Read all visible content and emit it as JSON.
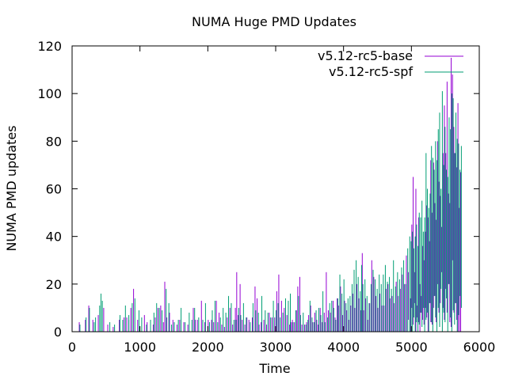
{
  "chart_data": {
    "type": "line",
    "title": "NUMA Huge PMD Updates",
    "xlabel": "Time",
    "ylabel": "NUMA PMD updates",
    "xlim": [
      0,
      6000
    ],
    "ylim": [
      0,
      120
    ],
    "xticks": [
      0,
      1000,
      2000,
      3000,
      4000,
      5000,
      6000
    ],
    "yticks": [
      0,
      20,
      40,
      60,
      80,
      100,
      120
    ],
    "grid": false,
    "legend_position": "top-right",
    "series": [
      {
        "name": "v5.12-rc5-base",
        "color": "#9400d3",
        "style": "impulses",
        "x": [
          100,
          190,
          240,
          300,
          380,
          460,
          520,
          600,
          690,
          760,
          800,
          830,
          860,
          900,
          960,
          1060,
          1100,
          1190,
          1220,
          1260,
          1300,
          1340,
          1360,
          1390,
          1430,
          1480,
          1540,
          1580,
          1640,
          1700,
          1780,
          1810,
          1840,
          1900,
          1950,
          2000,
          2050,
          2080,
          2120,
          2160,
          2200,
          2240,
          2280,
          2320,
          2360,
          2400,
          2420,
          2440,
          2470,
          2500,
          2540,
          2570,
          2600,
          2650,
          2690,
          2720,
          2750,
          2780,
          2820,
          2860,
          2900,
          2940,
          2980,
          3010,
          3040,
          3080,
          3120,
          3160,
          3200,
          3220,
          3240,
          3270,
          3300,
          3320,
          3350,
          3380,
          3420,
          3450,
          3480,
          3510,
          3540,
          3570,
          3600,
          3620,
          3650,
          3680,
          3710,
          3740,
          3770,
          3800,
          3840,
          3870,
          3900,
          3920,
          3950,
          3980,
          4010,
          4040,
          4070,
          4100,
          4130,
          4160,
          4190,
          4220,
          4250,
          4270,
          4290,
          4320,
          4350,
          4380,
          4410,
          4440,
          4470,
          4500,
          4530,
          4560,
          4590,
          4620,
          4650,
          4680,
          4710,
          4740,
          4770,
          4800,
          4830,
          4860,
          4890,
          4920,
          4950,
          4980,
          5000,
          5020,
          5040,
          5060,
          5080,
          5100,
          5120,
          5140,
          5160,
          5180,
          5200,
          5220,
          5240,
          5260,
          5280,
          5300,
          5320,
          5340,
          5360,
          5380,
          5400,
          5420,
          5440,
          5460,
          5480,
          5500,
          5520,
          5540,
          5560,
          5580,
          5600,
          5620,
          5640,
          5660,
          5680,
          5700,
          5720
        ],
        "values": [
          4,
          5,
          11,
          5,
          7,
          10,
          3,
          2,
          5,
          6,
          6,
          5,
          10,
          18,
          5,
          7,
          4,
          3,
          6,
          10,
          11,
          4,
          21,
          6,
          8,
          5,
          3,
          5,
          4,
          3,
          10,
          5,
          5,
          13,
          4,
          5,
          5,
          4,
          13,
          8,
          3,
          2,
          6,
          10,
          3,
          10,
          25,
          7,
          20,
          5,
          3,
          6,
          5,
          6,
          19,
          14,
          3,
          4,
          5,
          3,
          8,
          6,
          6,
          17,
          24,
          13,
          10,
          7,
          3,
          4,
          5,
          4,
          9,
          19,
          23,
          3,
          3,
          4,
          7,
          11,
          4,
          8,
          5,
          3,
          10,
          4,
          8,
          25,
          9,
          8,
          13,
          6,
          14,
          11,
          19,
          7,
          13,
          9,
          5,
          11,
          16,
          10,
          20,
          14,
          9,
          33,
          9,
          14,
          5,
          12,
          30,
          23,
          15,
          10,
          16,
          11,
          11,
          18,
          20,
          14,
          15,
          12,
          21,
          15,
          18,
          24,
          20,
          32,
          25,
          14,
          45,
          65,
          25,
          60,
          11,
          48,
          20,
          15,
          36,
          30,
          42,
          53,
          48,
          38,
          72,
          50,
          71,
          54,
          47,
          80,
          63,
          57,
          44,
          75,
          95,
          75,
          105,
          58,
          54,
          115,
          108,
          86,
          75,
          69,
          96,
          52,
          67
        ],
        "mins": [
          0,
          0,
          0,
          0,
          0,
          0,
          0,
          0,
          0,
          0,
          0,
          0,
          0,
          0,
          0,
          0,
          0,
          0,
          0,
          0,
          0,
          0,
          0,
          0,
          0,
          0,
          0,
          0,
          0,
          0,
          0,
          0,
          0,
          0,
          0,
          0,
          0,
          0,
          0,
          0,
          0,
          0,
          0,
          0,
          0,
          0,
          0,
          0,
          0,
          0,
          0,
          0,
          0,
          0,
          0,
          0,
          0,
          0,
          0,
          0,
          0,
          0,
          0,
          0,
          0,
          0,
          0,
          0,
          0,
          0,
          0,
          0,
          0,
          0,
          0,
          0,
          0,
          0,
          0,
          0,
          0,
          0,
          0,
          0,
          0,
          0,
          0,
          0,
          0,
          0,
          0,
          0,
          0,
          0,
          0,
          0,
          0,
          0,
          0,
          0,
          0,
          0,
          0,
          0,
          0,
          0,
          0,
          0,
          0,
          0,
          0,
          0,
          0,
          0,
          0,
          0,
          0,
          0,
          0,
          0,
          0,
          0,
          0,
          0,
          0,
          0,
          0,
          0,
          5,
          0,
          10,
          3,
          12,
          0,
          6,
          4,
          0,
          8,
          5,
          3,
          10,
          6,
          0,
          12,
          4,
          3,
          10,
          15,
          4,
          20,
          8,
          12,
          25,
          10,
          5,
          18,
          8,
          20,
          4,
          2,
          30,
          8,
          12,
          5,
          0
        ]
      },
      {
        "name": "v5.12-rc5-spf",
        "color": "#009e73",
        "style": "impulses",
        "x": [
          110,
          200,
          250,
          320,
          340,
          400,
          420,
          440,
          550,
          620,
          700,
          740,
          780,
          830,
          880,
          920,
          980,
          1020,
          1090,
          1150,
          1200,
          1240,
          1280,
          1320,
          1380,
          1420,
          1460,
          1500,
          1560,
          1600,
          1660,
          1720,
          1760,
          1800,
          1860,
          1920,
          1960,
          2020,
          2060,
          2100,
          2140,
          2180,
          2220,
          2260,
          2300,
          2340,
          2380,
          2410,
          2450,
          2480,
          2520,
          2560,
          2620,
          2660,
          2700,
          2740,
          2790,
          2840,
          2880,
          2920,
          2960,
          3000,
          3030,
          3060,
          3100,
          3140,
          3180,
          3210,
          3250,
          3290,
          3330,
          3360,
          3400,
          3440,
          3470,
          3500,
          3530,
          3560,
          3590,
          3630,
          3660,
          3690,
          3720,
          3760,
          3790,
          3820,
          3850,
          3880,
          3910,
          3940,
          3970,
          4000,
          4030,
          4060,
          4090,
          4120,
          4150,
          4180,
          4210,
          4240,
          4260,
          4280,
          4310,
          4340,
          4370,
          4400,
          4430,
          4460,
          4490,
          4520,
          4550,
          4580,
          4610,
          4640,
          4670,
          4700,
          4730,
          4760,
          4790,
          4820,
          4850,
          4880,
          4910,
          4940,
          4970,
          4990,
          5010,
          5030,
          5050,
          5070,
          5090,
          5110,
          5130,
          5150,
          5170,
          5190,
          5210,
          5230,
          5250,
          5270,
          5290,
          5310,
          5330,
          5350,
          5370,
          5390,
          5410,
          5430,
          5450,
          5470,
          5490,
          5510,
          5530,
          5550,
          5570,
          5590,
          5610,
          5630,
          5650,
          5670,
          5690,
          5710,
          5730
        ],
        "values": [
          3,
          6,
          10,
          4,
          6,
          11,
          16,
          13,
          4,
          3,
          7,
          5,
          11,
          7,
          12,
          14,
          9,
          6,
          3,
          5,
          8,
          12,
          10,
          9,
          18,
          12,
          3,
          4,
          5,
          10,
          4,
          8,
          5,
          10,
          6,
          5,
          12,
          4,
          9,
          13,
          4,
          6,
          10,
          8,
          15,
          12,
          5,
          5,
          10,
          7,
          12,
          6,
          4,
          12,
          9,
          8,
          15,
          9,
          8,
          6,
          13,
          9,
          12,
          6,
          8,
          14,
          13,
          16,
          4,
          9,
          15,
          7,
          8,
          3,
          5,
          13,
          6,
          4,
          9,
          10,
          7,
          17,
          4,
          6,
          12,
          13,
          10,
          5,
          14,
          24,
          16,
          22,
          12,
          14,
          15,
          20,
          26,
          30,
          23,
          17,
          28,
          20,
          22,
          15,
          12,
          20,
          26,
          22,
          18,
          24,
          20,
          24,
          28,
          21,
          23,
          18,
          30,
          19,
          25,
          22,
          27,
          30,
          20,
          35,
          40,
          38,
          42,
          35,
          40,
          45,
          36,
          50,
          48,
          55,
          42,
          48,
          75,
          60,
          52,
          58,
          78,
          73,
          68,
          80,
          72,
          85,
          92,
          60,
          101,
          70,
          86,
          68,
          65,
          90,
          85,
          100,
          98,
          75,
          92,
          81,
          79,
          68,
          78
        ],
        "mins": [
          0,
          0,
          0,
          0,
          0,
          0,
          0,
          0,
          0,
          0,
          0,
          0,
          0,
          0,
          0,
          0,
          0,
          0,
          0,
          0,
          0,
          0,
          0,
          0,
          0,
          0,
          0,
          0,
          0,
          0,
          0,
          0,
          0,
          0,
          0,
          0,
          0,
          0,
          0,
          0,
          0,
          0,
          0,
          0,
          0,
          0,
          0,
          0,
          0,
          0,
          0,
          0,
          0,
          0,
          0,
          0,
          0,
          0,
          0,
          0,
          0,
          0,
          0,
          0,
          0,
          0,
          0,
          0,
          0,
          0,
          0,
          0,
          0,
          0,
          0,
          0,
          0,
          0,
          0,
          0,
          0,
          0,
          0,
          0,
          0,
          0,
          0,
          0,
          0,
          0,
          0,
          0,
          0,
          0,
          0,
          0,
          0,
          0,
          0,
          0,
          0,
          0,
          0,
          0,
          0,
          0,
          0,
          0,
          0,
          0,
          0,
          0,
          0,
          0,
          0,
          0,
          0,
          0,
          0,
          0,
          0,
          0,
          0,
          0,
          0,
          0,
          0,
          6,
          0,
          4,
          0,
          3,
          8,
          2,
          10,
          0,
          5,
          8,
          0,
          12,
          4,
          0,
          15,
          6,
          0,
          10,
          2,
          18,
          0,
          8,
          4,
          14,
          0,
          20,
          6,
          0,
          9,
          3,
          12,
          0,
          7,
          15,
          10
        ]
      }
    ]
  }
}
